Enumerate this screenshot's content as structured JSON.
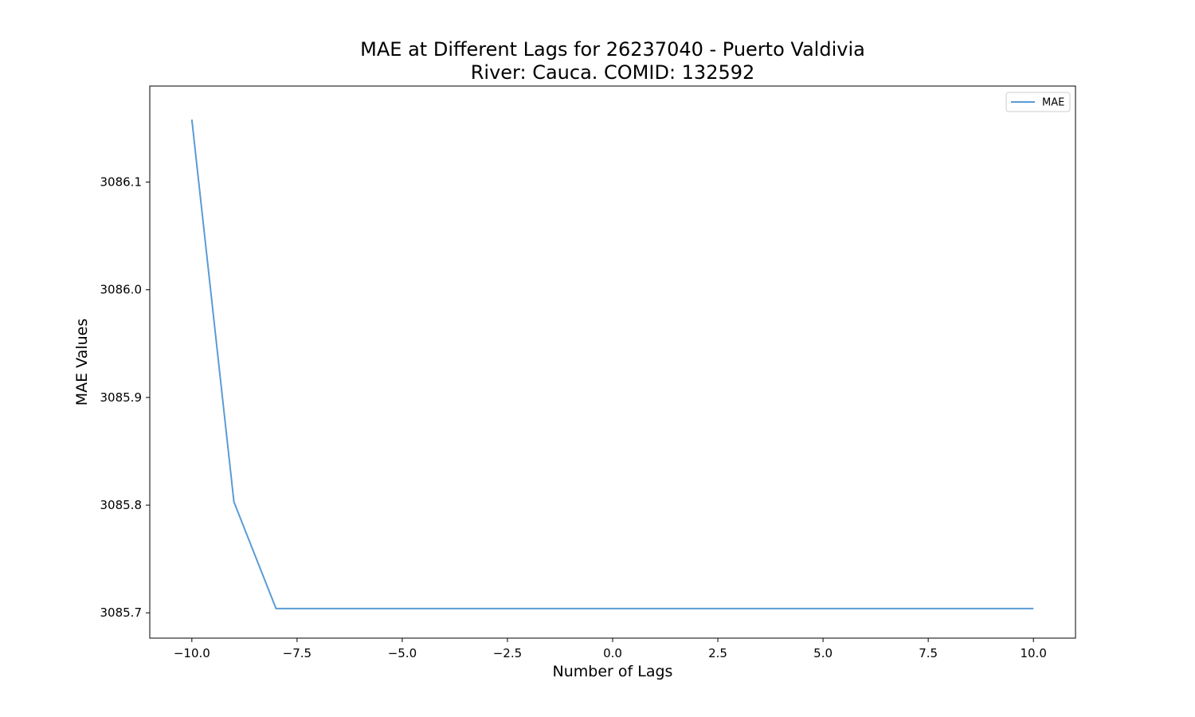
{
  "chart_data": {
    "type": "line",
    "title": "MAE at Different Lags for 26237040 - Puerto Valdivia",
    "subtitle": "River: Cauca. COMID: 132592",
    "xlabel": "Number of Lags",
    "ylabel": "MAE Values",
    "xlim": [
      -11,
      11
    ],
    "ylim": [
      3085.6765,
      3086.1892
    ],
    "x_ticks": [
      -10.0,
      -7.5,
      -5.0,
      -2.5,
      0.0,
      2.5,
      5.0,
      7.5,
      10.0
    ],
    "x_tick_labels": [
      "−10.0",
      "−7.5",
      "−5.0",
      "−2.5",
      "0.0",
      "2.5",
      "5.0",
      "7.5",
      "10.0"
    ],
    "y_ticks": [
      3085.7,
      3085.8,
      3085.9,
      3086.0,
      3086.1
    ],
    "y_tick_labels": [
      "3085.7",
      "3085.8",
      "3085.9",
      "3086.0",
      "3086.1"
    ],
    "grid": false,
    "legend": "top-right",
    "series": [
      {
        "name": "MAE",
        "color": "#5b9bd5",
        "x": [
          -10,
          -9,
          -8,
          -7,
          -6,
          -5,
          -4,
          -3,
          -2,
          -1,
          0,
          1,
          2,
          3,
          4,
          5,
          6,
          7,
          8,
          9,
          10
        ],
        "values": [
          3086.158,
          3085.803,
          3085.704,
          3085.704,
          3085.704,
          3085.704,
          3085.704,
          3085.704,
          3085.704,
          3085.704,
          3085.704,
          3085.704,
          3085.704,
          3085.704,
          3085.704,
          3085.704,
          3085.704,
          3085.704,
          3085.704,
          3085.704,
          3085.704
        ]
      }
    ]
  }
}
